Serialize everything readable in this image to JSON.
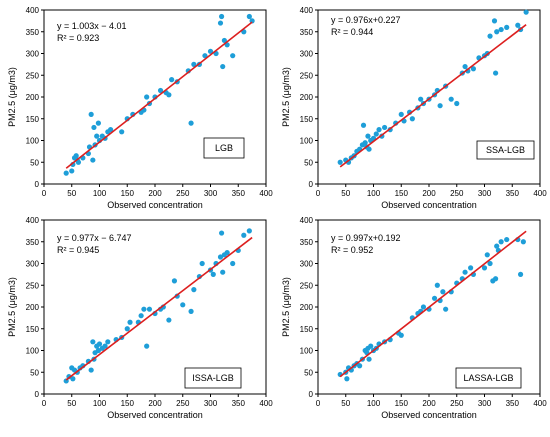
{
  "colors": {
    "point": "#1e9ed8",
    "fit_line": "#dd1f1f",
    "axis": "#000000"
  },
  "chart_data": [
    {
      "type": "scatter",
      "xlabel": "Observed concentration",
      "ylabel": "PM2.5 (μg/m3)",
      "xlim": [
        0,
        400
      ],
      "ylim": [
        0,
        400
      ],
      "xticks": [
        0,
        50,
        100,
        150,
        200,
        250,
        300,
        350,
        400
      ],
      "yticks": [
        0,
        50,
        100,
        150,
        200,
        250,
        300,
        350,
        400
      ],
      "equation": "y = 1.003x − 4.01",
      "r2": "R² = 0.923",
      "model_label": "LGB",
      "fit": {
        "slope": 1.003,
        "intercept": -4.01,
        "x_range": [
          40,
          375
        ]
      },
      "points": [
        [
          40,
          25
        ],
        [
          50,
          30
        ],
        [
          52,
          45
        ],
        [
          55,
          60
        ],
        [
          58,
          65
        ],
        [
          60,
          55
        ],
        [
          62,
          50
        ],
        [
          70,
          60
        ],
        [
          80,
          70
        ],
        [
          82,
          85
        ],
        [
          85,
          160
        ],
        [
          88,
          55
        ],
        [
          90,
          130
        ],
        [
          92,
          90
        ],
        [
          95,
          110
        ],
        [
          98,
          140
        ],
        [
          100,
          100
        ],
        [
          105,
          110
        ],
        [
          110,
          105
        ],
        [
          115,
          120
        ],
        [
          120,
          125
        ],
        [
          140,
          120
        ],
        [
          150,
          150
        ],
        [
          160,
          160
        ],
        [
          175,
          165
        ],
        [
          180,
          170
        ],
        [
          185,
          200
        ],
        [
          190,
          185
        ],
        [
          200,
          200
        ],
        [
          210,
          215
        ],
        [
          220,
          210
        ],
        [
          225,
          205
        ],
        [
          230,
          240
        ],
        [
          240,
          235
        ],
        [
          260,
          260
        ],
        [
          265,
          140
        ],
        [
          270,
          275
        ],
        [
          280,
          275
        ],
        [
          290,
          295
        ],
        [
          300,
          305
        ],
        [
          310,
          300
        ],
        [
          318,
          370
        ],
        [
          320,
          385
        ],
        [
          322,
          270
        ],
        [
          325,
          330
        ],
        [
          330,
          320
        ],
        [
          340,
          295
        ],
        [
          360,
          350
        ],
        [
          370,
          385
        ],
        [
          375,
          375
        ]
      ]
    },
    {
      "type": "scatter",
      "xlabel": "Observed concentration",
      "ylabel": "PM2.5 (μg/m3)",
      "xlim": [
        0,
        400
      ],
      "ylim": [
        0,
        400
      ],
      "xticks": [
        0,
        50,
        100,
        150,
        200,
        250,
        300,
        350,
        400
      ],
      "yticks": [
        0,
        50,
        100,
        150,
        200,
        250,
        300,
        350,
        400
      ],
      "equation": "y = 0.976x+0.227",
      "r2": "R² = 0.944",
      "model_label": "SSA-LGB",
      "fit": {
        "slope": 0.976,
        "intercept": 0.227,
        "x_range": [
          40,
          375
        ]
      },
      "points": [
        [
          40,
          50
        ],
        [
          50,
          55
        ],
        [
          55,
          50
        ],
        [
          60,
          60
        ],
        [
          65,
          65
        ],
        [
          70,
          75
        ],
        [
          75,
          80
        ],
        [
          80,
          90
        ],
        [
          82,
          135
        ],
        [
          85,
          95
        ],
        [
          88,
          85
        ],
        [
          90,
          110
        ],
        [
          92,
          80
        ],
        [
          95,
          100
        ],
        [
          100,
          105
        ],
        [
          105,
          115
        ],
        [
          110,
          125
        ],
        [
          115,
          110
        ],
        [
          120,
          130
        ],
        [
          130,
          125
        ],
        [
          140,
          140
        ],
        [
          150,
          160
        ],
        [
          155,
          145
        ],
        [
          165,
          165
        ],
        [
          170,
          150
        ],
        [
          180,
          175
        ],
        [
          185,
          195
        ],
        [
          190,
          185
        ],
        [
          200,
          195
        ],
        [
          210,
          205
        ],
        [
          215,
          215
        ],
        [
          220,
          180
        ],
        [
          230,
          225
        ],
        [
          240,
          195
        ],
        [
          250,
          185
        ],
        [
          260,
          255
        ],
        [
          265,
          270
        ],
        [
          270,
          260
        ],
        [
          280,
          265
        ],
        [
          290,
          290
        ],
        [
          300,
          295
        ],
        [
          305,
          300
        ],
        [
          310,
          340
        ],
        [
          318,
          375
        ],
        [
          320,
          255
        ],
        [
          322,
          350
        ],
        [
          330,
          355
        ],
        [
          340,
          360
        ],
        [
          360,
          365
        ],
        [
          365,
          355
        ],
        [
          375,
          395
        ]
      ]
    },
    {
      "type": "scatter",
      "xlabel": "Observed concentration",
      "ylabel": "PM2.5 (μg/m3)",
      "xlim": [
        0,
        400
      ],
      "ylim": [
        0,
        400
      ],
      "xticks": [
        0,
        50,
        100,
        150,
        200,
        250,
        300,
        350,
        400
      ],
      "yticks": [
        0,
        50,
        100,
        150,
        200,
        250,
        300,
        350,
        400
      ],
      "equation": "y = 0.977x − 6.747",
      "r2": "R² = 0.945",
      "model_label": "ISSA-LGB",
      "fit": {
        "slope": 0.977,
        "intercept": -6.747,
        "x_range": [
          40,
          375
        ]
      },
      "points": [
        [
          40,
          30
        ],
        [
          45,
          40
        ],
        [
          50,
          60
        ],
        [
          52,
          35
        ],
        [
          55,
          55
        ],
        [
          60,
          50
        ],
        [
          65,
          60
        ],
        [
          70,
          65
        ],
        [
          80,
          75
        ],
        [
          85,
          55
        ],
        [
          88,
          120
        ],
        [
          90,
          80
        ],
        [
          92,
          95
        ],
        [
          95,
          110
        ],
        [
          98,
          100
        ],
        [
          100,
          115
        ],
        [
          105,
          105
        ],
        [
          110,
          110
        ],
        [
          115,
          120
        ],
        [
          130,
          125
        ],
        [
          140,
          130
        ],
        [
          150,
          150
        ],
        [
          155,
          165
        ],
        [
          170,
          165
        ],
        [
          175,
          180
        ],
        [
          180,
          195
        ],
        [
          185,
          110
        ],
        [
          190,
          195
        ],
        [
          200,
          185
        ],
        [
          210,
          195
        ],
        [
          215,
          200
        ],
        [
          225,
          170
        ],
        [
          235,
          260
        ],
        [
          240,
          225
        ],
        [
          250,
          205
        ],
        [
          265,
          190
        ],
        [
          270,
          240
        ],
        [
          280,
          270
        ],
        [
          285,
          300
        ],
        [
          300,
          285
        ],
        [
          305,
          275
        ],
        [
          310,
          300
        ],
        [
          318,
          315
        ],
        [
          320,
          370
        ],
        [
          322,
          280
        ],
        [
          325,
          320
        ],
        [
          330,
          325
        ],
        [
          340,
          300
        ],
        [
          350,
          330
        ],
        [
          360,
          365
        ],
        [
          370,
          375
        ]
      ]
    },
    {
      "type": "scatter",
      "xlabel": "Observed concentration",
      "ylabel": "PM2.5 (μg/m3)",
      "xlim": [
        0,
        400
      ],
      "ylim": [
        0,
        400
      ],
      "xticks": [
        0,
        50,
        100,
        150,
        200,
        250,
        300,
        350,
        400
      ],
      "yticks": [
        0,
        50,
        100,
        150,
        200,
        250,
        300,
        350,
        400
      ],
      "equation": "y = 0.997x+0.192",
      "r2": "R² = 0.952",
      "model_label": "LASSA-LGB",
      "fit": {
        "slope": 0.997,
        "intercept": 0.192,
        "x_range": [
          40,
          375
        ]
      },
      "points": [
        [
          40,
          45
        ],
        [
          50,
          50
        ],
        [
          52,
          35
        ],
        [
          55,
          60
        ],
        [
          60,
          55
        ],
        [
          65,
          65
        ],
        [
          70,
          70
        ],
        [
          75,
          65
        ],
        [
          80,
          80
        ],
        [
          85,
          100
        ],
        [
          88,
          95
        ],
        [
          90,
          105
        ],
        [
          92,
          80
        ],
        [
          95,
          110
        ],
        [
          100,
          100
        ],
        [
          105,
          105
        ],
        [
          110,
          115
        ],
        [
          120,
          120
        ],
        [
          130,
          125
        ],
        [
          145,
          140
        ],
        [
          150,
          135
        ],
        [
          170,
          175
        ],
        [
          180,
          185
        ],
        [
          185,
          190
        ],
        [
          190,
          200
        ],
        [
          200,
          195
        ],
        [
          210,
          220
        ],
        [
          215,
          250
        ],
        [
          220,
          215
        ],
        [
          225,
          235
        ],
        [
          230,
          195
        ],
        [
          240,
          235
        ],
        [
          250,
          255
        ],
        [
          260,
          265
        ],
        [
          265,
          280
        ],
        [
          275,
          290
        ],
        [
          280,
          275
        ],
        [
          300,
          290
        ],
        [
          305,
          320
        ],
        [
          310,
          300
        ],
        [
          315,
          260
        ],
        [
          320,
          265
        ],
        [
          322,
          340
        ],
        [
          325,
          330
        ],
        [
          330,
          350
        ],
        [
          340,
          355
        ],
        [
          360,
          355
        ],
        [
          365,
          275
        ],
        [
          370,
          350
        ]
      ]
    }
  ]
}
